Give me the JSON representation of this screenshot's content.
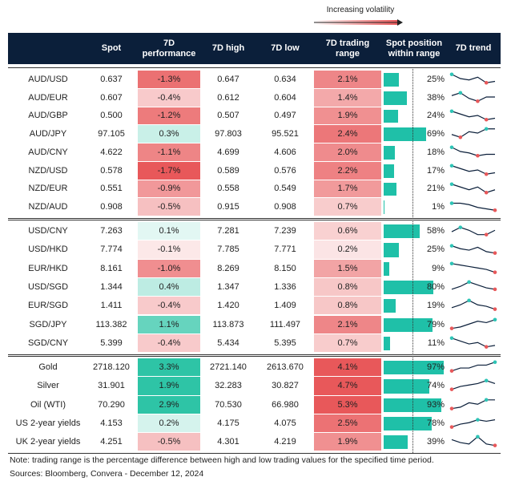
{
  "legend": {
    "label": "Increasing volatility"
  },
  "header": [
    "Spot",
    "7D performance",
    "7D high",
    "7D low",
    "7D trading range",
    "Spot position within range",
    "7D trend"
  ],
  "groups": [
    {
      "rows": [
        [
          "AUD/USD",
          "0.637",
          "-1.3%",
          "0.647",
          "0.634",
          "2.1%",
          "25%"
        ],
        [
          "AUD/EUR",
          "0.607",
          "-0.4%",
          "0.612",
          "0.604",
          "1.4%",
          "38%"
        ],
        [
          "AUD/GBP",
          "0.500",
          "-1.2%",
          "0.507",
          "0.497",
          "1.9%",
          "24%"
        ],
        [
          "AUD/JPY",
          "97.105",
          "0.3%",
          "97.803",
          "95.521",
          "2.4%",
          "69%"
        ],
        [
          "AUD/CNY",
          "4.622",
          "-1.1%",
          "4.699",
          "4.606",
          "2.0%",
          "18%"
        ],
        [
          "NZD/USD",
          "0.578",
          "-1.7%",
          "0.589",
          "0.576",
          "2.2%",
          "17%"
        ],
        [
          "NZD/EUR",
          "0.551",
          "-0.9%",
          "0.558",
          "0.549",
          "1.7%",
          "21%"
        ],
        [
          "NZD/AUD",
          "0.908",
          "-0.5%",
          "0.915",
          "0.908",
          "0.7%",
          "1%"
        ]
      ],
      "trends": [
        [
          8,
          5,
          4,
          6,
          2,
          3
        ],
        [
          6,
          8,
          4,
          2,
          5,
          5
        ],
        [
          8,
          6,
          4,
          5,
          2,
          3
        ],
        [
          4,
          2,
          6,
          5,
          8,
          8
        ],
        [
          8,
          5,
          4,
          2,
          3,
          3
        ],
        [
          8,
          6,
          4,
          5,
          2,
          3
        ],
        [
          8,
          6,
          4,
          6,
          2,
          4
        ],
        [
          7,
          7,
          6,
          4,
          3,
          2
        ]
      ]
    },
    {
      "rows": [
        [
          "USD/CNY",
          "7.263",
          "0.1%",
          "7.281",
          "7.239",
          "0.6%",
          "58%"
        ],
        [
          "USD/HKD",
          "7.774",
          "-0.1%",
          "7.785",
          "7.771",
          "0.2%",
          "25%"
        ],
        [
          "EUR/HKD",
          "8.161",
          "-1.0%",
          "8.269",
          "8.150",
          "1.5%",
          "9%"
        ],
        [
          "USD/SGD",
          "1.344",
          "0.4%",
          "1.347",
          "1.336",
          "0.8%",
          "80%"
        ],
        [
          "EUR/SGD",
          "1.411",
          "-0.4%",
          "1.420",
          "1.409",
          "0.8%",
          "19%"
        ],
        [
          "SGD/JPY",
          "113.382",
          "1.1%",
          "113.873",
          "111.497",
          "2.1%",
          "79%"
        ],
        [
          "SGD/CNY",
          "5.399",
          "-0.4%",
          "5.434",
          "5.395",
          "0.7%",
          "11%"
        ]
      ],
      "trends": [
        [
          4,
          7,
          5,
          2,
          2,
          5
        ],
        [
          7,
          5,
          4,
          6,
          3,
          2
        ],
        [
          8,
          7,
          6,
          5,
          4,
          2
        ],
        [
          3,
          5,
          8,
          6,
          4,
          3
        ],
        [
          3,
          5,
          8,
          5,
          4,
          2
        ],
        [
          2,
          3,
          5,
          7,
          6,
          8
        ],
        [
          8,
          6,
          4,
          5,
          2,
          3
        ]
      ]
    },
    {
      "rows": [
        [
          "Gold",
          "2718.120",
          "3.3%",
          "2721.140",
          "2613.670",
          "4.1%",
          "97%"
        ],
        [
          "Silver",
          "31.901",
          "1.9%",
          "32.283",
          "30.827",
          "4.7%",
          "74%"
        ],
        [
          "Oil (WTI)",
          "70.290",
          "2.9%",
          "70.530",
          "66.980",
          "5.3%",
          "93%"
        ],
        [
          "US 2-year yields",
          "4.153",
          "0.2%",
          "4.175",
          "4.075",
          "2.5%",
          "78%"
        ],
        [
          "UK 2-year yields",
          "4.251",
          "-0.5%",
          "4.301",
          "4.219",
          "1.9%",
          "39%"
        ]
      ],
      "trends": [
        [
          2,
          4,
          4,
          6,
          6,
          8
        ],
        [
          2,
          4,
          5,
          6,
          8,
          6
        ],
        [
          2,
          3,
          6,
          5,
          8,
          8
        ],
        [
          2,
          4,
          5,
          7,
          6,
          7
        ],
        [
          6,
          4,
          3,
          8,
          3,
          2
        ]
      ]
    }
  ],
  "footer": {
    "note": "Note: trading range is the percentage difference between high and low trading values for the specified time period.",
    "sources": "Sources: Bloomberg, Convera - December 12, 2024"
  }
}
